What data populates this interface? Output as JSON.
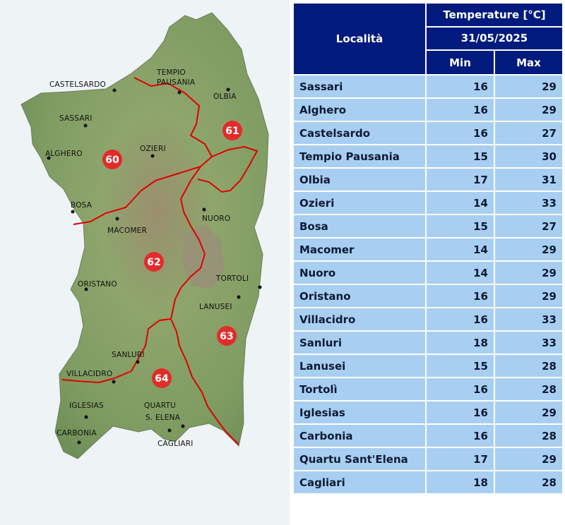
{
  "map": {
    "cities": [
      {
        "name": "CASTELSARDO"
      },
      {
        "name": "TEMPIO"
      },
      {
        "name": "PAUSANIA"
      },
      {
        "name": "OLBIA"
      },
      {
        "name": "SASSARI"
      },
      {
        "name": "ALGHERO"
      },
      {
        "name": "OZIERI"
      },
      {
        "name": "BOSA"
      },
      {
        "name": "MACOMER"
      },
      {
        "name": "NUORO"
      },
      {
        "name": "ORISTANO"
      },
      {
        "name": "TORTOLI"
      },
      {
        "name": "LANUSEI"
      },
      {
        "name": "SANLURI"
      },
      {
        "name": "VILLACIDRO"
      },
      {
        "name": "IGLESIAS"
      },
      {
        "name": "QUARTU"
      },
      {
        "name": "S. ELENA"
      },
      {
        "name": "CARBONIA"
      },
      {
        "name": "CAGLIARI"
      }
    ],
    "zones": [
      "60",
      "61",
      "62",
      "63",
      "64"
    ],
    "colors": {
      "land": "#8aa36a",
      "sea": "#eef3f6",
      "border": "#e00000",
      "zone_marker": "#e32b2b"
    }
  },
  "table": {
    "header": {
      "locality": "Località",
      "temperature": "Temperature [°C]",
      "date": "31/05/2025",
      "min": "Min",
      "max": "Max"
    },
    "rows": [
      {
        "city": "Sassari",
        "min": "16",
        "max": "29"
      },
      {
        "city": "Alghero",
        "min": "16",
        "max": "29"
      },
      {
        "city": "Castelsardo",
        "min": "16",
        "max": "27"
      },
      {
        "city": "Tempio Pausania",
        "min": "15",
        "max": "30"
      },
      {
        "city": "Olbia",
        "min": "17",
        "max": "31"
      },
      {
        "city": "Ozieri",
        "min": "14",
        "max": "33"
      },
      {
        "city": "Bosa",
        "min": "15",
        "max": "27"
      },
      {
        "city": "Macomer",
        "min": "14",
        "max": "29"
      },
      {
        "city": "Nuoro",
        "min": "14",
        "max": "29"
      },
      {
        "city": "Oristano",
        "min": "16",
        "max": "29"
      },
      {
        "city": "Villacidro",
        "min": "16",
        "max": "33"
      },
      {
        "city": "Sanluri",
        "min": "18",
        "max": "33"
      },
      {
        "city": "Lanusei",
        "min": "15",
        "max": "28"
      },
      {
        "city": "Tortolì",
        "min": "16",
        "max": "28"
      },
      {
        "city": "Iglesias",
        "min": "16",
        "max": "29"
      },
      {
        "city": "Carbonia",
        "min": "16",
        "max": "28"
      },
      {
        "city": "Quartu Sant'Elena",
        "min": "17",
        "max": "29"
      },
      {
        "city": "Cagliari",
        "min": "18",
        "max": "28"
      }
    ]
  }
}
